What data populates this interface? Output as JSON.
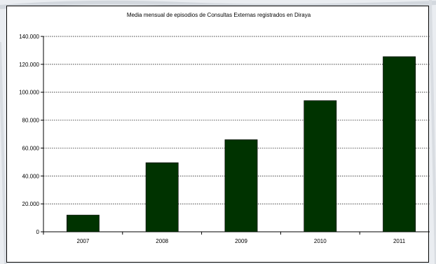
{
  "chart_data": {
    "type": "bar",
    "title": "Media mensual de episodios de Consultas Externas registrados en Diraya",
    "categories": [
      "2007",
      "2008",
      "2009",
      "2010",
      "2011"
    ],
    "values": [
      12000,
      49500,
      66000,
      94000,
      125500
    ],
    "ylim": [
      0,
      140000
    ],
    "yticks": [
      0,
      20000,
      40000,
      60000,
      80000,
      100000,
      120000,
      140000
    ],
    "ytick_labels": [
      "0",
      "20.000",
      "40.000",
      "60.000",
      "80.000",
      "100.000",
      "120.000",
      "140.000"
    ],
    "xlabel": "",
    "ylabel": "",
    "grid": true,
    "grid_style": "dotted",
    "bar_color": "#003300",
    "legend": "none"
  }
}
